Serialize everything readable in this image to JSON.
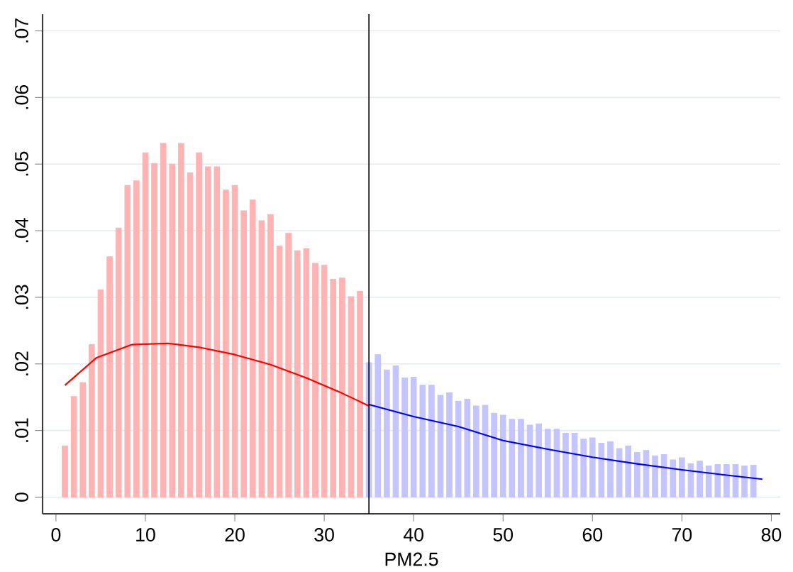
{
  "chart_data": {
    "type": "bar",
    "xlabel": "PM2.5",
    "series": [
      {
        "color": "#ffb3b3",
        "x": [
          1,
          2,
          3,
          4,
          5,
          6,
          7,
          8,
          9,
          10,
          11,
          12,
          13,
          14,
          15,
          16,
          17,
          18,
          19,
          20,
          21,
          22,
          23,
          24,
          25,
          26,
          27,
          28,
          29,
          30,
          31,
          32,
          33,
          34
        ],
        "values": [
          0.0077,
          0.0151,
          0.0172,
          0.0229,
          0.0311,
          0.0361,
          0.0404,
          0.0468,
          0.0475,
          0.0517,
          0.0501,
          0.0531,
          0.05,
          0.0531,
          0.0487,
          0.0517,
          0.0496,
          0.0496,
          0.0461,
          0.0468,
          0.043,
          0.0446,
          0.0415,
          0.0424,
          0.0377,
          0.0396,
          0.037,
          0.0373,
          0.0351,
          0.0348,
          0.0327,
          0.0329,
          0.0301,
          0.0309
        ]
      },
      {
        "color": "#c4c4ff",
        "x": [
          35,
          36,
          37,
          38,
          39,
          40,
          41,
          42,
          43,
          44,
          45,
          46,
          47,
          48,
          49,
          50,
          51,
          52,
          53,
          54,
          55,
          56,
          57,
          58,
          59,
          60,
          61,
          62,
          63,
          64,
          65,
          66,
          67,
          68,
          69,
          70,
          71,
          72,
          73,
          74,
          75,
          76,
          77,
          78
        ],
        "values": [
          0.0202,
          0.0214,
          0.0191,
          0.0197,
          0.0179,
          0.018,
          0.0168,
          0.0168,
          0.0153,
          0.0157,
          0.0144,
          0.0147,
          0.0137,
          0.0138,
          0.0126,
          0.0123,
          0.0117,
          0.0117,
          0.0108,
          0.011,
          0.0102,
          0.0102,
          0.0096,
          0.0096,
          0.0087,
          0.0089,
          0.0081,
          0.0083,
          0.0073,
          0.0077,
          0.0067,
          0.007,
          0.0062,
          0.0064,
          0.0056,
          0.0059,
          0.005,
          0.0054,
          0.0047,
          0.0049,
          0.0049,
          0.0049,
          0.0047,
          0.0048
        ]
      },
      {
        "type": "line",
        "color": "#ff0000",
        "x": [
          1,
          4.5,
          8.5,
          12.5,
          16,
          20,
          24,
          28,
          32,
          35
        ],
        "values": [
          0.0168,
          0.0209,
          0.0229,
          0.0231,
          0.0225,
          0.0214,
          0.0199,
          0.0179,
          0.0156,
          0.0137
        ]
      },
      {
        "type": "line",
        "color": "#0000ff",
        "x": [
          35,
          40,
          45,
          50,
          55,
          60,
          65,
          70,
          75,
          79
        ],
        "values": [
          0.0139,
          0.0121,
          0.0106,
          0.0085,
          0.0072,
          0.006,
          0.005,
          0.0041,
          0.0033,
          0.0027
        ]
      }
    ],
    "xlim": [
      -1.5,
      81
    ],
    "ylim": [
      -0.0025,
      0.0725
    ],
    "xticks": [
      0,
      10,
      20,
      30,
      40,
      50,
      60,
      70,
      80
    ],
    "yticks": [
      0,
      {
        "value": 0.01,
        "label": ".01"
      },
      {
        "value": 0.02,
        "label": ".02"
      },
      {
        "value": 0.03,
        "label": ".03"
      },
      {
        "value": 0.04,
        "label": ".04"
      },
      {
        "value": 0.05,
        "label": ".05"
      },
      {
        "value": 0.06,
        "label": ".06"
      },
      {
        "value": 0.07,
        "label": ".07"
      }
    ],
    "grid": "y",
    "ref_lines": [
      {
        "axis": "x",
        "value": 35,
        "color": "#000000"
      }
    ]
  }
}
